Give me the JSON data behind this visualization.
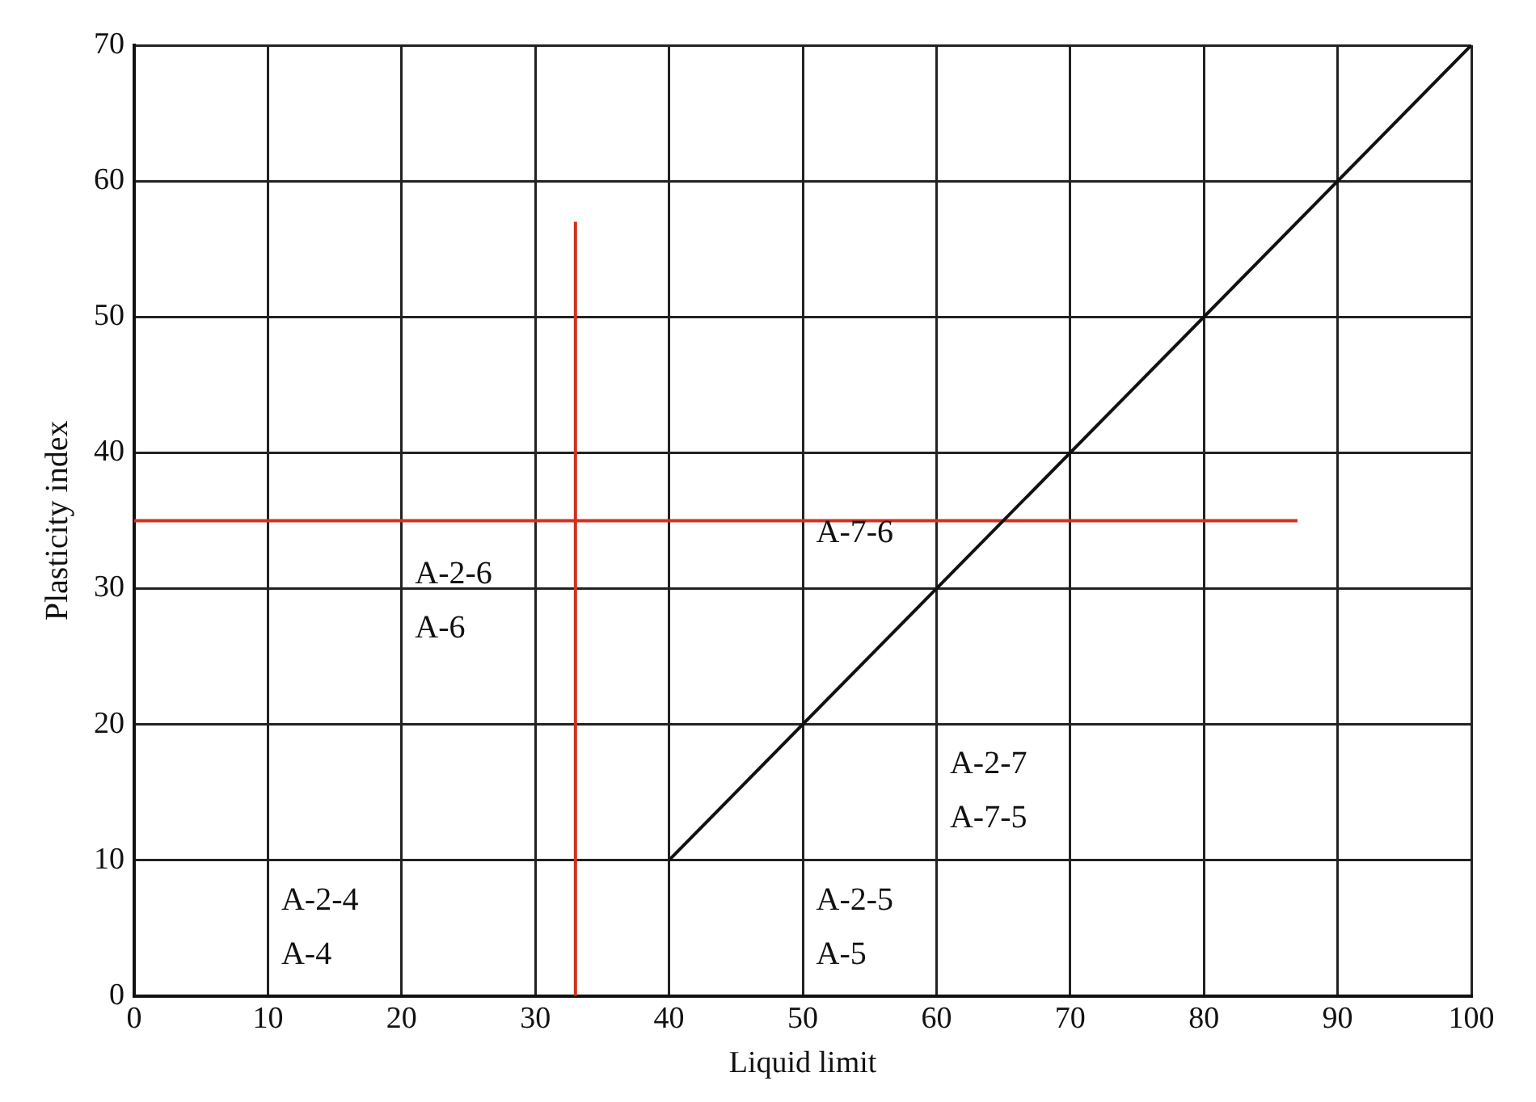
{
  "chart_data": {
    "type": "line",
    "xlabel": "Liquid limit",
    "ylabel": "Plasticity index",
    "xlim": [
      0,
      100
    ],
    "xticks": [
      0,
      10,
      20,
      30,
      40,
      50,
      60,
      70,
      80,
      90,
      100
    ],
    "ylim": [
      0,
      70
    ],
    "yticks": [
      0,
      10,
      20,
      30,
      40,
      50,
      60,
      70
    ],
    "grid": true,
    "legend": false,
    "marker": "none",
    "line_style": "solid",
    "series": [
      {
        "color": "#111111",
        "x": [
          40,
          100
        ],
        "values": [
          10,
          70
        ]
      },
      {
        "color": "#d2301e",
        "x": [
          33,
          33
        ],
        "values": [
          0,
          57
        ]
      },
      {
        "color": "#d2301e",
        "x": [
          0,
          87
        ],
        "values": [
          35,
          35
        ]
      }
    ],
    "annotations": [
      "A-2-4",
      "A-4",
      "A-2-6",
      "A-6",
      "A-7-6",
      "A-2-7",
      "A-7-5",
      "A-2-5",
      "A-5"
    ]
  }
}
